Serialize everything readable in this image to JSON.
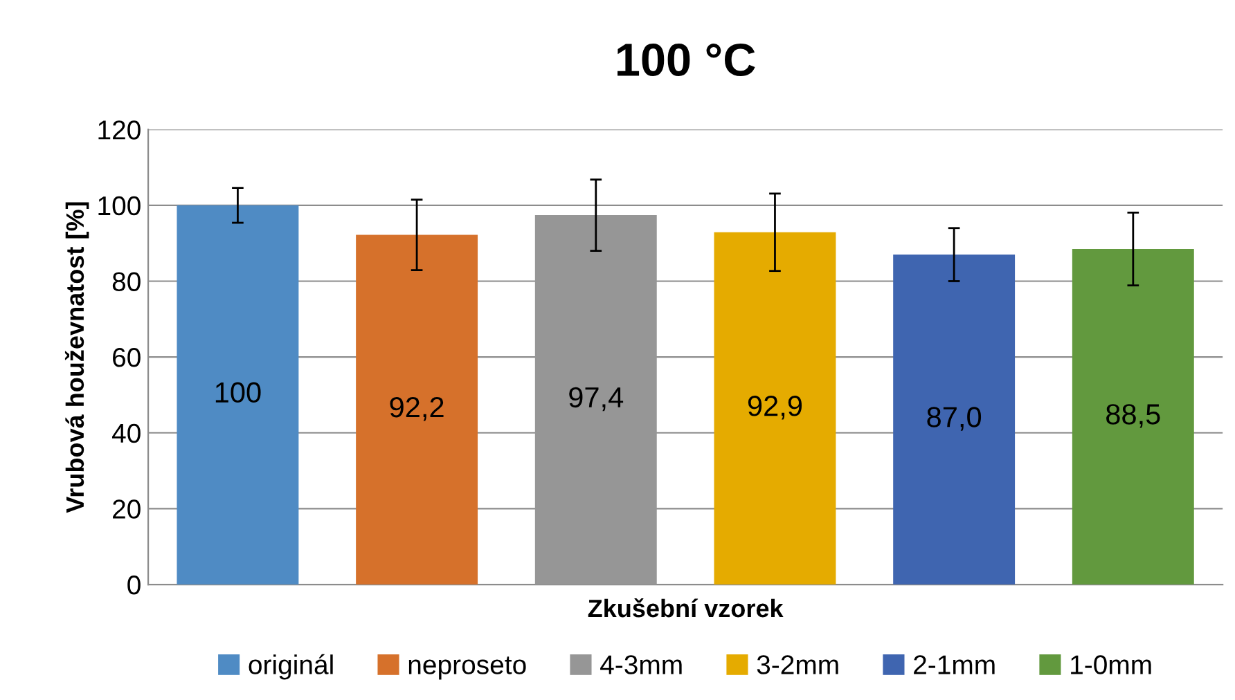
{
  "chart_data": {
    "type": "bar",
    "title": "100 °C",
    "xlabel": "Zkušební vzorek",
    "ylabel": "Vrubová houževnatost [%]",
    "categories": [
      null,
      null,
      null,
      null,
      null,
      null
    ],
    "series": [
      {
        "name": "originál",
        "color": "#4f8bc4",
        "values": [
          100,
          null,
          null,
          null,
          null,
          null
        ],
        "errors": [
          4.6,
          null,
          null,
          null,
          null,
          null
        ],
        "value_labels": [
          "100",
          null,
          null,
          null,
          null,
          null
        ]
      },
      {
        "name": "neproseto",
        "color": "#d6712b",
        "values": [
          null,
          92.2,
          null,
          null,
          null,
          null
        ],
        "errors": [
          null,
          9.3,
          null,
          null,
          null,
          null
        ],
        "value_labels": [
          null,
          "92,2",
          null,
          null,
          null,
          null
        ]
      },
      {
        "name": "4-3mm",
        "color": "#969696",
        "values": [
          null,
          null,
          97.4,
          null,
          null,
          null
        ],
        "errors": [
          null,
          null,
          9.4,
          null,
          null,
          null
        ],
        "value_labels": [
          null,
          null,
          "97,4",
          null,
          null,
          null
        ]
      },
      {
        "name": "3-2mm",
        "color": "#e5ab00",
        "values": [
          null,
          null,
          null,
          92.9,
          null,
          null
        ],
        "errors": [
          null,
          null,
          null,
          10.2,
          null,
          null
        ],
        "value_labels": [
          null,
          null,
          null,
          "92,9",
          null,
          null
        ]
      },
      {
        "name": "2-1mm",
        "color": "#3f65b0",
        "values": [
          null,
          null,
          null,
          null,
          87.0,
          null
        ],
        "errors": [
          null,
          null,
          null,
          null,
          7.0,
          null
        ],
        "value_labels": [
          null,
          null,
          null,
          null,
          "87,0",
          null
        ]
      },
      {
        "name": "1-0mm",
        "color": "#62993e",
        "values": [
          null,
          null,
          null,
          null,
          null,
          88.5
        ],
        "errors": [
          null,
          null,
          null,
          null,
          null,
          9.6
        ],
        "value_labels": [
          null,
          null,
          null,
          null,
          null,
          "88,5"
        ]
      }
    ],
    "ylim": [
      0,
      120
    ],
    "yticks": [
      0,
      20,
      40,
      60,
      80,
      100,
      120
    ],
    "grid": "y",
    "legend": "bottom",
    "tick_labels": "y"
  }
}
